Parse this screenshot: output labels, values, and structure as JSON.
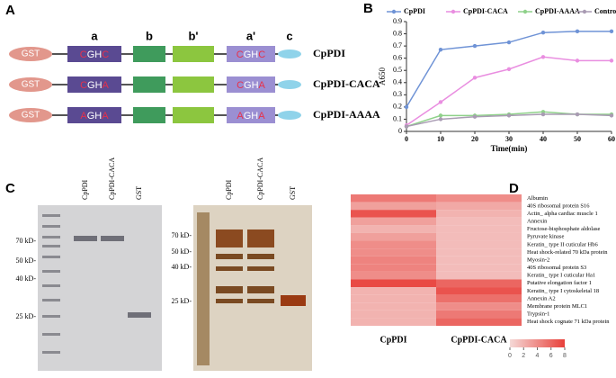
{
  "panel_a": {
    "label": "A",
    "domains": [
      "a",
      "b",
      "b'",
      "a'",
      "c"
    ],
    "rows": [
      {
        "tag": "GST",
        "name": "CpPDI",
        "motifs": [
          {
            "first": "C",
            "mid": "GH",
            "last": "C"
          },
          {
            "first": "C",
            "mid": "GH",
            "last": "C"
          }
        ]
      },
      {
        "tag": "GST",
        "name": "CpPDI-CACA",
        "motifs": [
          {
            "first": "C",
            "mid": "GH",
            "last": "A"
          },
          {
            "first": "C",
            "mid": "GH",
            "last": "A"
          }
        ]
      },
      {
        "tag": "GST",
        "name": "CpPDI-AAAA",
        "motifs": [
          {
            "first": "A",
            "mid": "GH",
            "last": "A"
          },
          {
            "first": "A",
            "mid": "GH",
            "last": "A"
          }
        ]
      }
    ]
  },
  "panel_c": {
    "label": "C",
    "gels": [
      {
        "lanes": [
          "CpPDI",
          "CpPDI-CACA",
          "GST"
        ],
        "markers": [
          "70 kD-",
          "50 kD-",
          "40 kD-",
          "25 kD-"
        ]
      },
      {
        "lanes": [
          "CpPDI",
          "CpPDI-CACA",
          "GST"
        ],
        "markers": [
          "70 kD-",
          "50 kD-",
          "40 kD-",
          "25 kD-"
        ]
      }
    ]
  },
  "chart_data": [
    {
      "type": "line",
      "panel": "B",
      "x_label": "Time(min)",
      "y_label": "A650",
      "x": [
        0,
        10,
        20,
        30,
        40,
        50,
        60
      ],
      "xlim": [
        0,
        60
      ],
      "xticks": [
        0,
        10,
        20,
        30,
        40,
        50,
        60
      ],
      "ylim": [
        0,
        0.9
      ],
      "yticks": [
        0,
        0.1,
        0.2,
        0.3,
        0.4,
        0.5,
        0.6,
        0.7,
        0.8,
        0.9
      ],
      "legend": "top",
      "series": [
        {
          "name": "CpPDI",
          "color": "#6f93d6",
          "values": [
            0.2,
            0.67,
            0.7,
            0.73,
            0.81,
            0.82,
            0.82
          ]
        },
        {
          "name": "CpPDI-CACA",
          "color": "#e98ee0",
          "values": [
            0.05,
            0.24,
            0.44,
            0.51,
            0.61,
            0.58,
            0.58
          ]
        },
        {
          "name": "CpPDI-AAAA",
          "color": "#8fd18a",
          "values": [
            0.04,
            0.13,
            0.13,
            0.14,
            0.16,
            0.14,
            0.14
          ]
        },
        {
          "name": "Control",
          "color": "#a99bb3",
          "values": [
            0.04,
            0.1,
            0.12,
            0.13,
            0.14,
            0.14,
            0.13
          ]
        }
      ]
    },
    {
      "type": "heatmap",
      "panel": "D",
      "columns": [
        "CpPDI",
        "CpPDI-CACA"
      ],
      "rows": [
        "Albumin",
        "40S ribosomal protein S16",
        "Actin_ alpha cardiac muscle 1",
        "Annexin",
        "Fructose-bisphosphate aldolase",
        "Pyruvate kinase",
        "Keratin_ type II cuticular Hb6",
        "Heat shock-related 70 kDa protein",
        "Myosin-2",
        "40S ribosomal protein S3",
        "Keratin_ type I cuticular Ha1",
        "Putative elongation factor 1",
        "Keratin_ type I cytoskeletal 18",
        "Annexin A2",
        "Membrane protein MLC1",
        "Trypsin-1",
        "Heat shock cognate 71 kDa protein"
      ],
      "values": [
        [
          5,
          4
        ],
        [
          3,
          2.5
        ],
        [
          7,
          2
        ],
        [
          3,
          1.5
        ],
        [
          2,
          1.5
        ],
        [
          3,
          1.5
        ],
        [
          4,
          1.5
        ],
        [
          4,
          1.5
        ],
        [
          4.5,
          1.5
        ],
        [
          4.5,
          1.5
        ],
        [
          4,
          1.5
        ],
        [
          7.5,
          6
        ],
        [
          2,
          7
        ],
        [
          2,
          5.5
        ],
        [
          2,
          4
        ],
        [
          2,
          5
        ],
        [
          2,
          6
        ]
      ],
      "zlim": [
        0,
        8
      ],
      "zticks": [
        0,
        2,
        4,
        6,
        8
      ],
      "colors": [
        "#f5d9d7",
        "#e8403a"
      ]
    }
  ]
}
